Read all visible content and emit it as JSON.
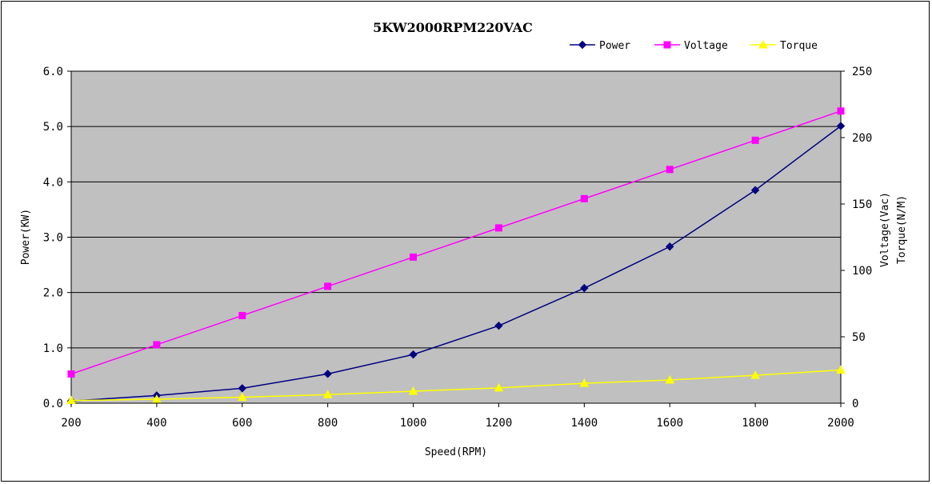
{
  "chart_data": {
    "type": "line",
    "title": "5KW2000RPM220VAC",
    "xlabel": "Speed(RPM)",
    "ylabel": "Power(KW)",
    "y2label_line1": "Voltage(Vac)",
    "y2label_line2": "Torque(N/M)",
    "x": [
      200,
      400,
      600,
      800,
      1000,
      1200,
      1400,
      1600,
      1800,
      2000
    ],
    "xlim": [
      200,
      2000
    ],
    "ylim": [
      0,
      6
    ],
    "y2lim": [
      0,
      250
    ],
    "x_ticks": [
      "200",
      "400",
      "600",
      "800",
      "1000",
      "1200",
      "1400",
      "1600",
      "1800",
      "2000"
    ],
    "y_ticks": [
      "0.0",
      "1.0",
      "2.0",
      "3.0",
      "4.0",
      "5.0",
      "6.0"
    ],
    "y2_ticks": [
      "0",
      "50",
      "100",
      "150",
      "200",
      "250"
    ],
    "grid": "horizontal",
    "plot_background": "#c0c0c0",
    "legend_position": "top-right",
    "series": [
      {
        "name": "Power",
        "axis": "left",
        "color": "#000080",
        "marker": "diamond",
        "values": [
          0.04,
          0.14,
          0.27,
          0.53,
          0.88,
          1.4,
          2.08,
          2.83,
          3.85,
          5.01
        ]
      },
      {
        "name": "Voltage",
        "axis": "right",
        "color": "#ff00ff",
        "marker": "square",
        "values": [
          22,
          44,
          66,
          88,
          110,
          132,
          154,
          176,
          198,
          220
        ]
      },
      {
        "name": "Torque",
        "axis": "right",
        "color": "#ffff00",
        "marker": "triangle",
        "values": [
          2,
          3,
          4.5,
          6.5,
          9,
          11.5,
          15,
          17.5,
          21,
          25
        ]
      }
    ]
  }
}
